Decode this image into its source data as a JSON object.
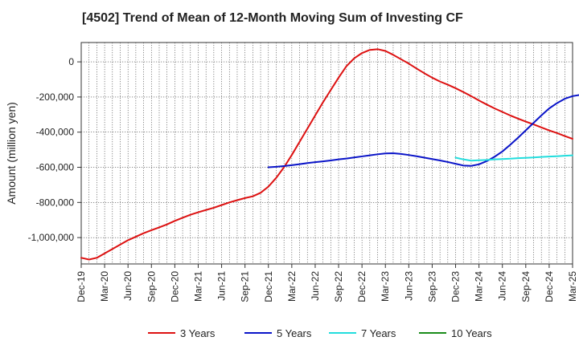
{
  "chart_data": {
    "type": "line",
    "title": "[4502]  Trend of Mean of 12-Month Moving Sum of Investing CF",
    "xlabel": "",
    "ylabel": "Amount (million yen)",
    "ylim": [
      -1150000,
      110000
    ],
    "yticks": [
      0,
      -200000,
      -400000,
      -600000,
      -800000,
      -1000000
    ],
    "ytick_labels": [
      "0",
      "-200,000",
      "-400,000",
      "-600,000",
      "-800,000",
      "-1,000,000"
    ],
    "x_start": "Dec-19",
    "x_end": "Mar-25",
    "xtick_labels": [
      "Dec-19",
      "Mar-20",
      "Jun-20",
      "Sep-20",
      "Dec-20",
      "Mar-21",
      "Jun-21",
      "Sep-21",
      "Dec-21",
      "Mar-22",
      "Jun-22",
      "Sep-22",
      "Dec-22",
      "Mar-23",
      "Jun-23",
      "Sep-23",
      "Dec-23",
      "Mar-24",
      "Jun-24",
      "Sep-24",
      "Dec-24",
      "Mar-25"
    ],
    "grid": true,
    "legend_position": "bottom",
    "series": [
      {
        "name": "3 Years",
        "color": "#dd1111",
        "start_month": 0,
        "values": [
          -1115000,
          -1125000,
          -1115000,
          -1090000,
          -1065000,
          -1040000,
          -1015000,
          -995000,
          -975000,
          -958000,
          -942000,
          -925000,
          -905000,
          -887000,
          -870000,
          -856000,
          -843000,
          -830000,
          -815000,
          -800000,
          -787000,
          -775000,
          -765000,
          -745000,
          -710000,
          -660000,
          -600000,
          -530000,
          -455000,
          -380000,
          -305000,
          -230000,
          -160000,
          -90000,
          -25000,
          20000,
          50000,
          68000,
          72000,
          62000,
          40000,
          15000,
          -10000,
          -38000,
          -65000,
          -90000,
          -112000,
          -130000,
          -150000,
          -172000,
          -195000,
          -220000,
          -243000,
          -265000,
          -285000,
          -305000,
          -323000,
          -340000,
          -356000,
          -373000,
          -390000,
          -405000,
          -422000,
          -438000
        ]
      },
      {
        "name": "5 Years",
        "color": "#0a14c8",
        "start_month": 24,
        "values": [
          -600000,
          -597000,
          -593000,
          -588000,
          -582000,
          -576000,
          -571000,
          -566000,
          -561000,
          -555000,
          -550000,
          -544000,
          -538000,
          -532000,
          -526000,
          -521000,
          -520000,
          -524000,
          -530000,
          -537000,
          -545000,
          -553000,
          -561000,
          -570000,
          -580000,
          -590000,
          -592000,
          -583000,
          -565000,
          -540000,
          -510000,
          -472000,
          -432000,
          -390000,
          -347000,
          -305000,
          -265000,
          -235000,
          -210000,
          -195000,
          -188000
        ]
      },
      {
        "name": "7 Years",
        "color": "#22dddd",
        "start_month": 48,
        "values": [
          -545000,
          -555000,
          -562000,
          -560000,
          -558000,
          -555000,
          -553000,
          -551000,
          -548000,
          -546000,
          -544000,
          -541000,
          -539000,
          -537000,
          -534000,
          -532000
        ]
      },
      {
        "name": "10 Years",
        "color": "#1a8c1a",
        "start_month": 0,
        "values": []
      }
    ]
  }
}
